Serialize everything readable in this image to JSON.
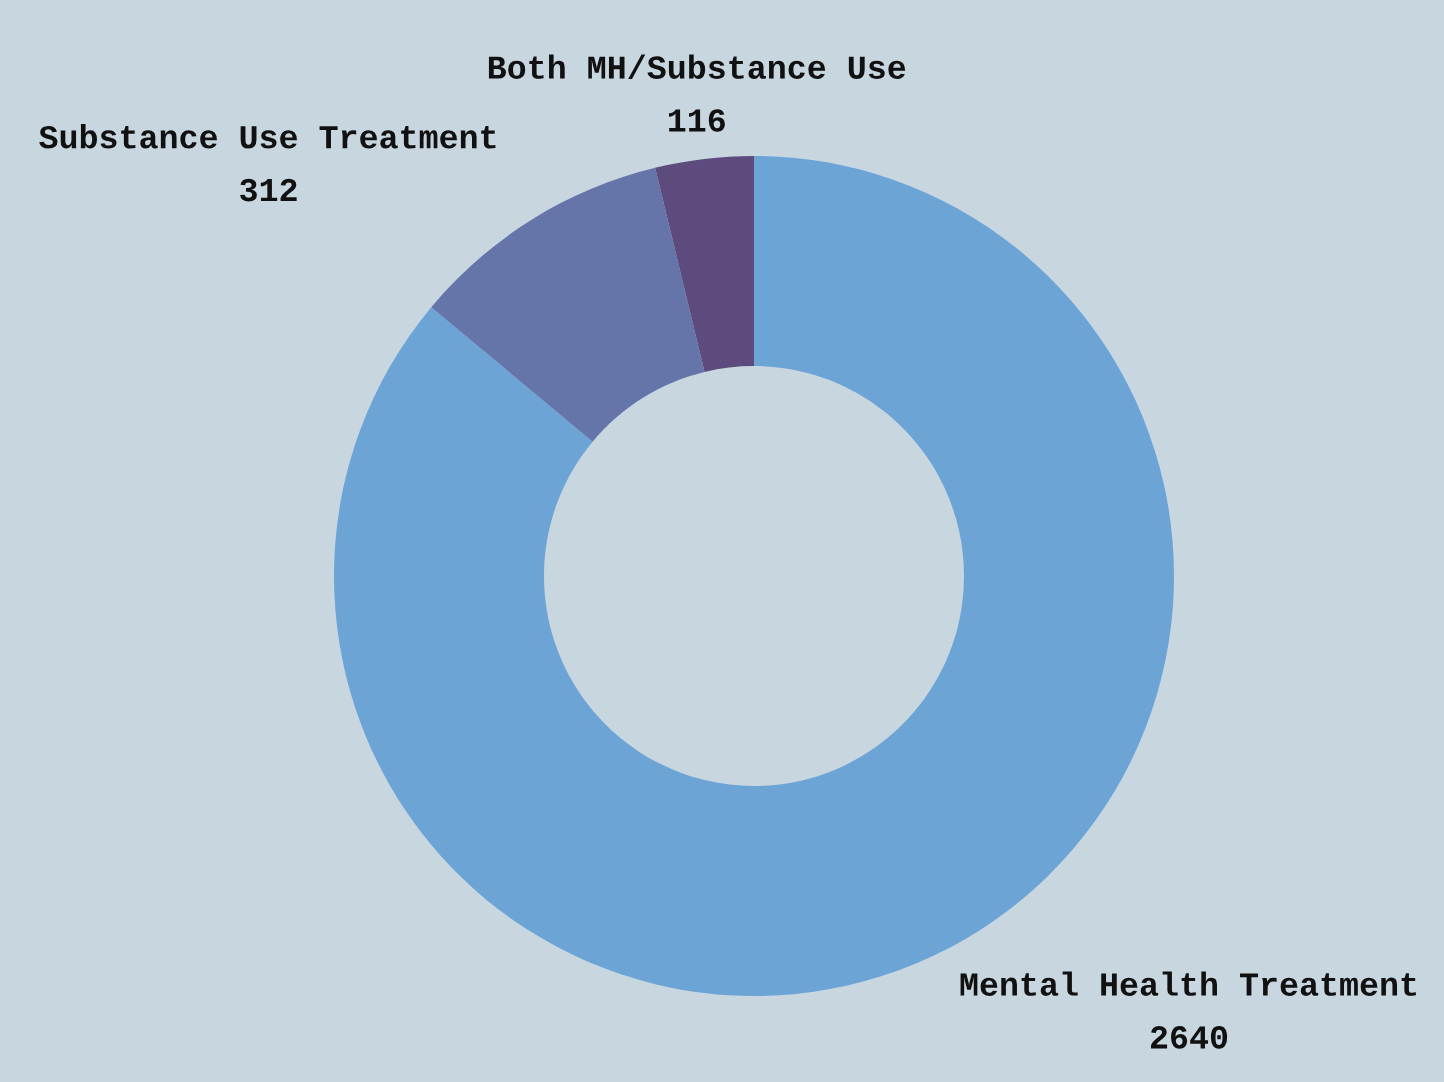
{
  "chart_data": {
    "type": "donut",
    "categories": [
      "Mental Health Treatment",
      "Substance Use Treatment",
      "Both MH/Substance Use"
    ],
    "values": [
      2640,
      312,
      116
    ],
    "colors": [
      "#6ca4d6",
      "#6675a9",
      "#5e4b7e"
    ],
    "data_labels": true,
    "legend": false
  }
}
